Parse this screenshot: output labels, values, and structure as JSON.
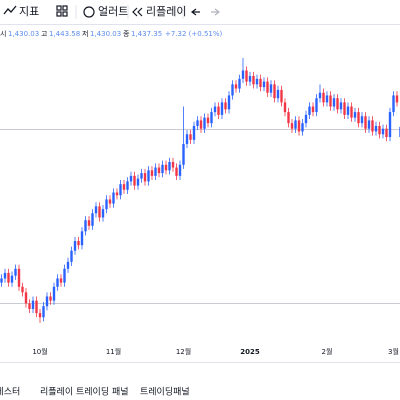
{
  "toolbar": {
    "indicators": "지표",
    "alerts": "얼러트",
    "replay": "리플레이"
  },
  "legend": {
    "open_label": "시",
    "open": "1,430.03",
    "high_label": "고",
    "high": "1,443.58",
    "low_label": "저",
    "low": "1,430.03",
    "close_label": "종",
    "close": "1,437.35",
    "change": "+7.32 (+0.51%)"
  },
  "tabs": [
    "전략 테스터",
    "리플레이 트레이딩 패널",
    "트레이딩패널"
  ],
  "chart_data": {
    "type": "candlestick",
    "up_color": "#2962ff",
    "down_color": "#f23645",
    "ylim": [
      1280,
      1500
    ],
    "hlines": [
      1436,
      1310
    ],
    "categories": [
      null,
      null,
      null,
      null,
      null,
      null,
      null,
      null,
      null,
      null,
      null,
      "10월",
      null,
      null,
      null,
      null,
      null,
      null,
      null,
      null,
      null,
      null,
      null,
      null,
      null,
      null,
      null,
      null,
      null,
      null,
      null,
      null,
      "11월",
      null,
      null,
      null,
      null,
      null,
      null,
      null,
      null,
      null,
      null,
      null,
      null,
      null,
      null,
      null,
      null,
      null,
      null,
      null,
      "12월",
      null,
      null,
      null,
      null,
      null,
      null,
      null,
      null,
      null,
      null,
      null,
      null,
      null,
      null,
      null,
      null,
      null,
      null,
      "2025",
      null,
      null,
      null,
      null,
      null,
      null,
      null,
      null,
      null,
      null,
      null,
      null,
      null,
      null,
      null,
      null,
      null,
      null,
      null,
      null,
      null,
      "2월",
      null,
      null,
      null,
      null,
      null,
      null,
      null,
      null,
      null,
      null,
      null,
      null,
      null,
      null,
      null,
      null,
      null,
      null,
      "3월",
      null
    ],
    "ohlc": [
      [
        1325,
        1331,
        1322,
        1328
      ],
      [
        1328,
        1335,
        1325,
        1332
      ],
      [
        1332,
        1335,
        1322,
        1325
      ],
      [
        1325,
        1333,
        1322,
        1330
      ],
      [
        1330,
        1338,
        1327,
        1335
      ],
      [
        1335,
        1338,
        1319,
        1322
      ],
      [
        1322,
        1325,
        1315,
        1318
      ],
      [
        1318,
        1321,
        1307,
        1310
      ],
      [
        1310,
        1313,
        1303,
        1306
      ],
      [
        1306,
        1315,
        1303,
        1312
      ],
      [
        1312,
        1315,
        1300,
        1303
      ],
      [
        1303,
        1306,
        1296,
        1300
      ],
      [
        1300,
        1311,
        1297,
        1308
      ],
      [
        1308,
        1318,
        1305,
        1315
      ],
      [
        1315,
        1318,
        1309,
        1312
      ],
      [
        1312,
        1325,
        1309,
        1322
      ],
      [
        1322,
        1331,
        1319,
        1328
      ],
      [
        1328,
        1331,
        1322,
        1325
      ],
      [
        1325,
        1338,
        1322,
        1335
      ],
      [
        1335,
        1343,
        1332,
        1340
      ],
      [
        1340,
        1351,
        1337,
        1348
      ],
      [
        1348,
        1358,
        1345,
        1355
      ],
      [
        1355,
        1358,
        1349,
        1352
      ],
      [
        1352,
        1365,
        1349,
        1362
      ],
      [
        1362,
        1373,
        1359,
        1370
      ],
      [
        1370,
        1373,
        1363,
        1366
      ],
      [
        1366,
        1378,
        1363,
        1375
      ],
      [
        1375,
        1383,
        1372,
        1380
      ],
      [
        1380,
        1383,
        1369,
        1372
      ],
      [
        1372,
        1381,
        1369,
        1378
      ],
      [
        1378,
        1388,
        1375,
        1385
      ],
      [
        1385,
        1388,
        1379,
        1382
      ],
      [
        1382,
        1393,
        1379,
        1390
      ],
      [
        1390,
        1393,
        1385,
        1388
      ],
      [
        1388,
        1399,
        1385,
        1396
      ],
      [
        1396,
        1399,
        1389,
        1392
      ],
      [
        1392,
        1401,
        1389,
        1398
      ],
      [
        1398,
        1405,
        1395,
        1402
      ],
      [
        1402,
        1405,
        1392,
        1395
      ],
      [
        1395,
        1403,
        1392,
        1400
      ],
      [
        1400,
        1407,
        1397,
        1404
      ],
      [
        1404,
        1407,
        1395,
        1398
      ],
      [
        1398,
        1409,
        1395,
        1406
      ],
      [
        1406,
        1409,
        1399,
        1402
      ],
      [
        1402,
        1411,
        1399,
        1408
      ],
      [
        1408,
        1411,
        1401,
        1404
      ],
      [
        1404,
        1413,
        1401,
        1410
      ],
      [
        1410,
        1413,
        1403,
        1406
      ],
      [
        1406,
        1415,
        1403,
        1412
      ],
      [
        1412,
        1415,
        1405,
        1408
      ],
      [
        1408,
        1411,
        1399,
        1402
      ],
      [
        1402,
        1413,
        1399,
        1410
      ],
      [
        1410,
        1452,
        1407,
        1425
      ],
      [
        1425,
        1435,
        1422,
        1432
      ],
      [
        1432,
        1435,
        1425,
        1428
      ],
      [
        1428,
        1441,
        1425,
        1438
      ],
      [
        1438,
        1445,
        1435,
        1442
      ],
      [
        1442,
        1445,
        1433,
        1436
      ],
      [
        1436,
        1447,
        1433,
        1444
      ],
      [
        1444,
        1447,
        1437,
        1440
      ],
      [
        1440,
        1451,
        1437,
        1448
      ],
      [
        1448,
        1455,
        1445,
        1452
      ],
      [
        1452,
        1455,
        1443,
        1446
      ],
      [
        1446,
        1458,
        1443,
        1455
      ],
      [
        1455,
        1458,
        1447,
        1450
      ],
      [
        1450,
        1463,
        1447,
        1460
      ],
      [
        1460,
        1471,
        1457,
        1468
      ],
      [
        1468,
        1471,
        1462,
        1465
      ],
      [
        1465,
        1475,
        1462,
        1472
      ],
      [
        1472,
        1487,
        1469,
        1478
      ],
      [
        1478,
        1481,
        1467,
        1470
      ],
      [
        1470,
        1477,
        1467,
        1474
      ],
      [
        1474,
        1477,
        1465,
        1468
      ],
      [
        1468,
        1475,
        1465,
        1472
      ],
      [
        1472,
        1475,
        1463,
        1466
      ],
      [
        1466,
        1473,
        1463,
        1470
      ],
      [
        1470,
        1473,
        1459,
        1462
      ],
      [
        1462,
        1471,
        1459,
        1468
      ],
      [
        1468,
        1471,
        1455,
        1458
      ],
      [
        1458,
        1467,
        1455,
        1464
      ],
      [
        1464,
        1467,
        1452,
        1455
      ],
      [
        1455,
        1458,
        1445,
        1448
      ],
      [
        1448,
        1451,
        1437,
        1440
      ],
      [
        1440,
        1443,
        1433,
        1436
      ],
      [
        1436,
        1445,
        1433,
        1442
      ],
      [
        1442,
        1445,
        1431,
        1434
      ],
      [
        1434,
        1443,
        1431,
        1440
      ],
      [
        1440,
        1449,
        1437,
        1446
      ],
      [
        1446,
        1455,
        1443,
        1452
      ],
      [
        1452,
        1455,
        1445,
        1448
      ],
      [
        1448,
        1461,
        1445,
        1458
      ],
      [
        1458,
        1468,
        1455,
        1462
      ],
      [
        1462,
        1465,
        1452,
        1455
      ],
      [
        1455,
        1463,
        1452,
        1460
      ],
      [
        1460,
        1463,
        1449,
        1452
      ],
      [
        1452,
        1461,
        1449,
        1458
      ],
      [
        1458,
        1461,
        1447,
        1450
      ],
      [
        1450,
        1458,
        1447,
        1455
      ],
      [
        1455,
        1458,
        1443,
        1446
      ],
      [
        1446,
        1455,
        1443,
        1452
      ],
      [
        1452,
        1455,
        1441,
        1444
      ],
      [
        1444,
        1451,
        1441,
        1448
      ],
      [
        1448,
        1451,
        1437,
        1440
      ],
      [
        1440,
        1448,
        1437,
        1445
      ],
      [
        1445,
        1448,
        1433,
        1436
      ],
      [
        1436,
        1445,
        1433,
        1442
      ],
      [
        1442,
        1445,
        1431,
        1434
      ],
      [
        1434,
        1441,
        1431,
        1438
      ],
      [
        1438,
        1441,
        1429,
        1432
      ],
      [
        1432,
        1439,
        1429,
        1436
      ],
      [
        1436,
        1439,
        1427,
        1430
      ],
      [
        1430,
        1451,
        1427,
        1448
      ],
      [
        1448,
        1463,
        1445,
        1460
      ],
      [
        1460,
        1463,
        1452,
        1455
      ],
      [
        1430.03,
        1443.58,
        1430.03,
        1437.35
      ]
    ]
  }
}
